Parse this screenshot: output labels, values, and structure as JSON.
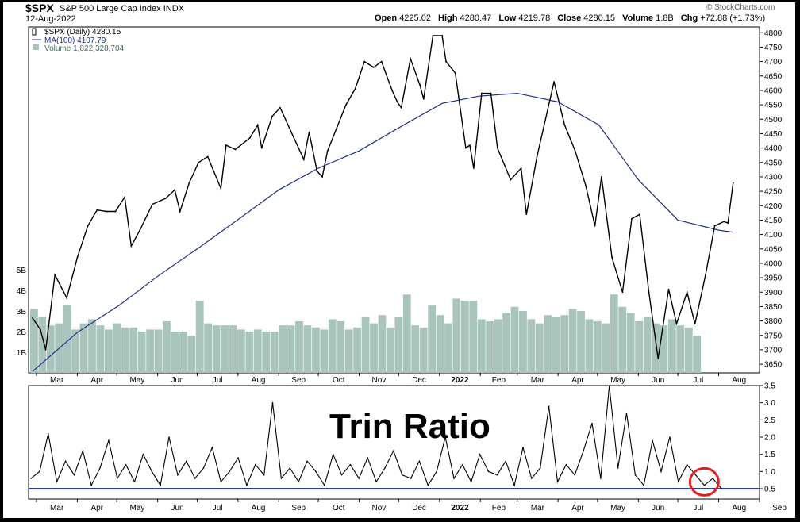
{
  "header": {
    "ticker": "$SPX",
    "full_name": "S&P 500 Large Cap Index",
    "exchange": "INDX",
    "date": "12-Aug-2022",
    "credit": "© StockCharts.com",
    "ohlc": [
      {
        "label": "Open",
        "value": "4225.02"
      },
      {
        "label": "High",
        "value": "4280.47"
      },
      {
        "label": "Low",
        "value": "4219.78"
      },
      {
        "label": "Close",
        "value": "4280.15"
      },
      {
        "label": "Volume",
        "value": "1.8B"
      },
      {
        "label": "Chg",
        "value": "+72.88 (+1.73%)"
      }
    ]
  },
  "colors": {
    "price": "#000000",
    "ma": "#1f2f8f",
    "volume": "#a9c4bc",
    "trin": "#000000",
    "trin_ref": "#1f3fbf",
    "highlight": "#e02020"
  },
  "chart_data": [
    {
      "type": "line",
      "title": "$SPX (Daily) 4280.15",
      "legend": [
        {
          "name": "$SPX (Daily)",
          "value": "4280.15"
        },
        {
          "name": "MA(100)",
          "value": "4107.79"
        },
        {
          "name": "Volume",
          "value": "1,822,328,704"
        }
      ],
      "legend_position": "top-left",
      "x_ticks": [
        "Mar",
        "Apr",
        "May",
        "Jun",
        "Jul",
        "Aug",
        "Sep",
        "Oct",
        "Nov",
        "Dec",
        "2022",
        "Feb",
        "Mar",
        "Apr",
        "May",
        "Jun",
        "Jul",
        "Aug"
      ],
      "y_ticks": [
        3650,
        3700,
        3750,
        3800,
        3850,
        3900,
        3950,
        4000,
        4050,
        4100,
        4150,
        4200,
        4250,
        4300,
        4350,
        4400,
        4450,
        4500,
        4550,
        4600,
        4650,
        4700,
        4750,
        4800
      ],
      "ylim": [
        3620,
        4820
      ],
      "volume_ticks": [
        "1B",
        "2B",
        "3B",
        "4B",
        "5B"
      ],
      "series": [
        {
          "name": "$SPX (Daily)",
          "x": [
            "2021-02-26",
            "2021-03-04",
            "2021-03-08",
            "2021-03-15",
            "2021-03-24",
            "2021-04-01",
            "2021-04-09",
            "2021-04-16",
            "2021-04-23",
            "2021-04-30",
            "2021-05-07",
            "2021-05-12",
            "2021-05-19",
            "2021-05-28",
            "2021-06-07",
            "2021-06-14",
            "2021-06-18",
            "2021-06-25",
            "2021-07-02",
            "2021-07-09",
            "2021-07-19",
            "2021-07-23",
            "2021-07-30",
            "2021-08-10",
            "2021-08-16",
            "2021-08-19",
            "2021-08-27",
            "2021-09-02",
            "2021-09-10",
            "2021-09-20",
            "2021-09-24",
            "2021-09-30",
            "2021-10-04",
            "2021-10-08",
            "2021-10-15",
            "2021-10-22",
            "2021-10-29",
            "2021-11-05",
            "2021-11-12",
            "2021-11-18",
            "2021-11-26",
            "2021-11-30",
            "2021-12-03",
            "2021-12-10",
            "2021-12-17",
            "2021-12-20",
            "2021-12-27",
            "2022-01-03",
            "2022-01-06",
            "2022-01-13",
            "2022-01-21",
            "2022-01-24",
            "2022-01-27",
            "2022-02-02",
            "2022-02-09",
            "2022-02-14",
            "2022-02-24",
            "2022-03-04",
            "2022-03-08",
            "2022-03-16",
            "2022-03-29",
            "2022-04-06",
            "2022-04-14",
            "2022-04-22",
            "2022-04-29",
            "2022-05-04",
            "2022-05-12",
            "2022-05-20",
            "2022-05-27",
            "2022-06-02",
            "2022-06-09",
            "2022-06-16",
            "2022-06-24",
            "2022-06-30",
            "2022-07-08",
            "2022-07-14",
            "2022-07-22",
            "2022-07-29",
            "2022-08-05",
            "2022-08-08",
            "2022-08-12"
          ],
          "values": [
            3810,
            3770,
            3700,
            3960,
            3880,
            4020,
            4130,
            4185,
            4180,
            4180,
            4230,
            4060,
            4120,
            4205,
            4225,
            4255,
            4180,
            4280,
            4350,
            4370,
            4260,
            4410,
            4395,
            4435,
            4480,
            4400,
            4510,
            4540,
            4460,
            4360,
            4455,
            4320,
            4300,
            4390,
            4470,
            4550,
            4605,
            4700,
            4680,
            4700,
            4600,
            4560,
            4540,
            4710,
            4620,
            4570,
            4790,
            4790,
            4700,
            4660,
            4400,
            4410,
            4330,
            4590,
            4590,
            4400,
            4290,
            4330,
            4170,
            4370,
            4630,
            4480,
            4390,
            4270,
            4130,
            4300,
            4020,
            3900,
            4155,
            4170,
            3900,
            3670,
            3910,
            3790,
            3900,
            3790,
            3960,
            4130,
            4145,
            4140,
            4280
          ]
        },
        {
          "name": "MA(100)",
          "x": [
            "2021-02-26",
            "2021-04-01",
            "2021-05-03",
            "2021-06-01",
            "2021-07-01",
            "2021-08-02",
            "2021-09-01",
            "2021-10-01",
            "2021-11-01",
            "2021-12-01",
            "2022-01-03",
            "2022-01-31",
            "2022-03-01",
            "2022-04-01",
            "2022-05-02",
            "2022-06-01",
            "2022-07-01",
            "2022-08-01",
            "2022-08-12"
          ],
          "values": [
            3625,
            3760,
            3855,
            3955,
            4050,
            4155,
            4255,
            4330,
            4390,
            4470,
            4555,
            4580,
            4590,
            4560,
            4480,
            4290,
            4150,
            4115,
            4108
          ]
        }
      ],
      "volume": {
        "name": "Volume",
        "unit": "B",
        "values": [
          3.1,
          2.7,
          2.3,
          2.4,
          3.3,
          2.1,
          2.4,
          2.6,
          2.3,
          2.1,
          2.4,
          2.2,
          2.2,
          2.0,
          2.1,
          2.1,
          2.5,
          2.0,
          2.0,
          1.8,
          3.5,
          2.4,
          2.3,
          2.3,
          2.3,
          2.1,
          2.0,
          2.1,
          2.0,
          2.0,
          2.3,
          2.3,
          2.5,
          2.3,
          2.2,
          2.1,
          2.6,
          2.5,
          2.1,
          2.2,
          2.7,
          2.4,
          2.8,
          2.2,
          2.7,
          3.8,
          2.3,
          2.2,
          3.3,
          2.8,
          2.4,
          3.6,
          3.5,
          3.5,
          2.6,
          2.5,
          2.6,
          2.9,
          3.2,
          3.0,
          2.6,
          2.4,
          2.8,
          2.7,
          2.8,
          3.1,
          3.0,
          2.6,
          2.5,
          2.4,
          3.8,
          3.2,
          2.9,
          2.5,
          2.7,
          2.4,
          2.3,
          2.6,
          2.3,
          2.2,
          1.8
        ]
      }
    },
    {
      "type": "line",
      "title": "Trin Ratio",
      "x_ticks": [
        "Mar",
        "Apr",
        "May",
        "Jun",
        "Jul",
        "Aug",
        "Sep",
        "Oct",
        "Nov",
        "Dec",
        "2022",
        "Feb",
        "Mar",
        "Apr",
        "May",
        "Jun",
        "Jul",
        "Aug",
        "Sep"
      ],
      "y_ticks": [
        0.5,
        1.0,
        1.5,
        2.0,
        2.5,
        3.0,
        3.5
      ],
      "ylim": [
        0.2,
        3.5
      ],
      "reference_line": 0.5,
      "annotation": "circle around latest readings near 0.5",
      "series": [
        {
          "name": "Trin",
          "values": [
            0.8,
            1.0,
            2.1,
            0.7,
            1.3,
            0.9,
            1.6,
            0.6,
            1.1,
            1.9,
            0.8,
            1.2,
            0.7,
            1.5,
            1.0,
            0.6,
            2.0,
            0.9,
            1.3,
            0.8,
            1.1,
            1.7,
            0.7,
            1.0,
            1.4,
            0.6,
            1.2,
            0.9,
            3.0,
            0.8,
            1.1,
            0.7,
            1.3,
            1.0,
            0.6,
            1.5,
            0.9,
            1.2,
            0.8,
            1.4,
            0.7,
            1.1,
            1.6,
            0.9,
            0.8,
            1.3,
            0.6,
            1.0,
            2.0,
            0.8,
            1.2,
            0.7,
            1.5,
            1.0,
            0.9,
            1.3,
            0.6,
            1.7,
            0.8,
            1.1,
            2.9,
            0.7,
            1.2,
            0.9,
            1.6,
            2.4,
            0.8,
            3.5,
            1.1,
            2.7,
            0.9,
            0.6,
            1.9,
            1.0,
            2.0,
            0.7,
            1.2,
            0.9,
            0.6,
            0.8,
            0.5
          ]
        }
      ]
    }
  ]
}
